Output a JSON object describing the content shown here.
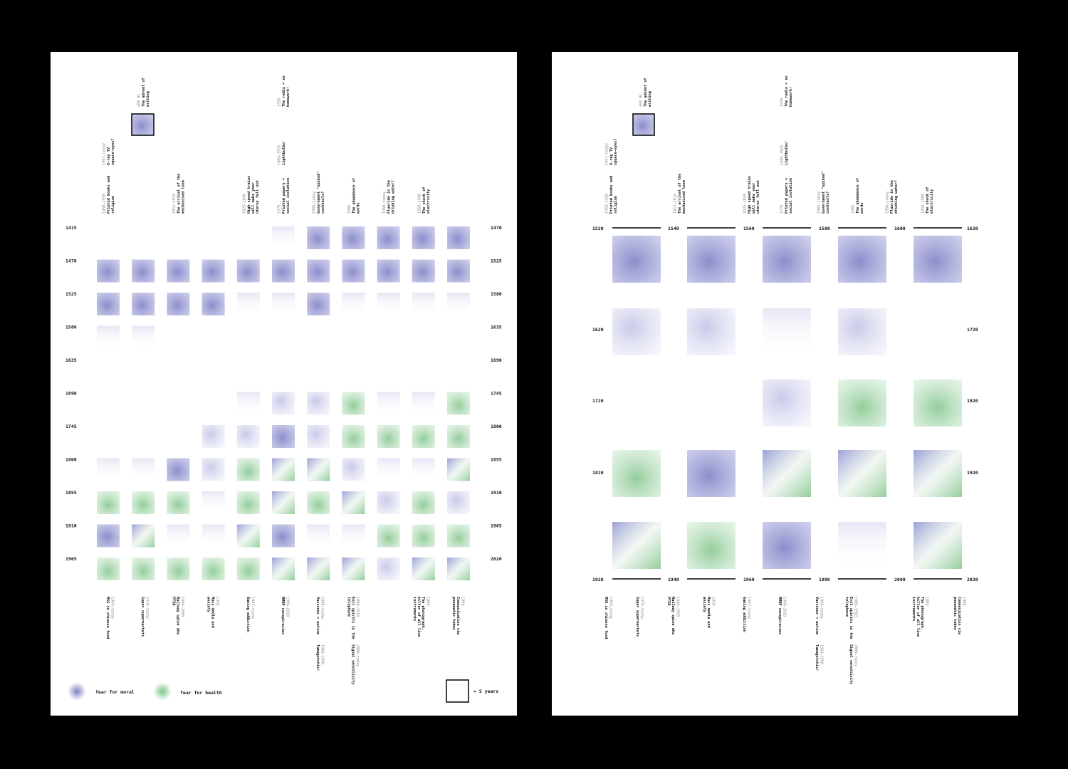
{
  "left_page": {
    "left_years": [
      "1415",
      "1470",
      "1525",
      "1580",
      "1635",
      "1690",
      "1745",
      "1800",
      "1855",
      "1910",
      "1965"
    ],
    "right_years": [
      "1470",
      "1525",
      "1580",
      "1635",
      "1690",
      "1745",
      "1800",
      "1855",
      "1910",
      "1965",
      "2020"
    ],
    "legend": {
      "moral": "fear for moral",
      "health": "fear for health",
      "scale": "= 5 years"
    }
  },
  "right_page": {
    "top_axis": [
      "1520",
      "1540",
      "1560",
      "1580",
      "1600",
      "1620"
    ],
    "bottom_axis": [
      "1920",
      "1940",
      "1960",
      "1980",
      "2000",
      "2020"
    ],
    "left_years": [
      "1620",
      "1720",
      "1820"
    ],
    "right_years": [
      "1720",
      "1820",
      "1920"
    ]
  },
  "top_labels": [
    {
      "date": "1450–1550",
      "title": "Printed books and religion"
    },
    {
      "date": "1967–today",
      "title": "X-ray TV square-eyes?"
    },
    {
      "date": "400 BC",
      "title": "The advent of writing"
    },
    {
      "date": "1811–1816",
      "title": "The arrival of the mechanised loom"
    },
    {
      "date": "1825–1840",
      "title": "High speed trains will make your uterus fall out"
    },
    {
      "date": "1775",
      "title": "Printed papers = social isolation"
    },
    {
      "date": "1880–1920",
      "title": "Lightbulbs!"
    },
    {
      "date": "1930",
      "title": "The radio = no homework!"
    },
    {
      "date": "1905–today",
      "title": "Government \"spiked\" cocktails?"
    },
    {
      "date": "1905",
      "title": "The abundance of words"
    },
    {
      "date": "1950–today",
      "title": "Fluoride in the drinking water?"
    },
    {
      "date": "1850–1900",
      "title": "The shock of electricity"
    }
  ],
  "bottom_labels": [
    {
      "date": "1960–today",
      "title": "MSG in chinese food"
    },
    {
      "date": "1970–today",
      "title": "Super supermarkets"
    },
    {
      "date": "1840–1900",
      "title": "Railway spine aka PTSD"
    },
    {
      "date": "1950",
      "title": "Mass media and anxiety"
    },
    {
      "date": "1987–today",
      "title": "Gaming addiction"
    },
    {
      "date": "1998–2010",
      "title": "MMRP conspiracies"
    },
    {
      "date": "1998–today",
      "title": "Vaccines = autism"
    },
    {
      "date": "1960–1990",
      "title": "Tamagotchis!"
    },
    {
      "date": "1880–1910",
      "title": "Evil spirits in the telephone"
    },
    {
      "date": "2000–today",
      "title": "Signal sensitivity"
    },
    {
      "date": "1880",
      "title": "The phonograph, killer of all live instruments"
    },
    {
      "date": "1990",
      "title": "Communication via pneumatic tubes"
    }
  ]
}
